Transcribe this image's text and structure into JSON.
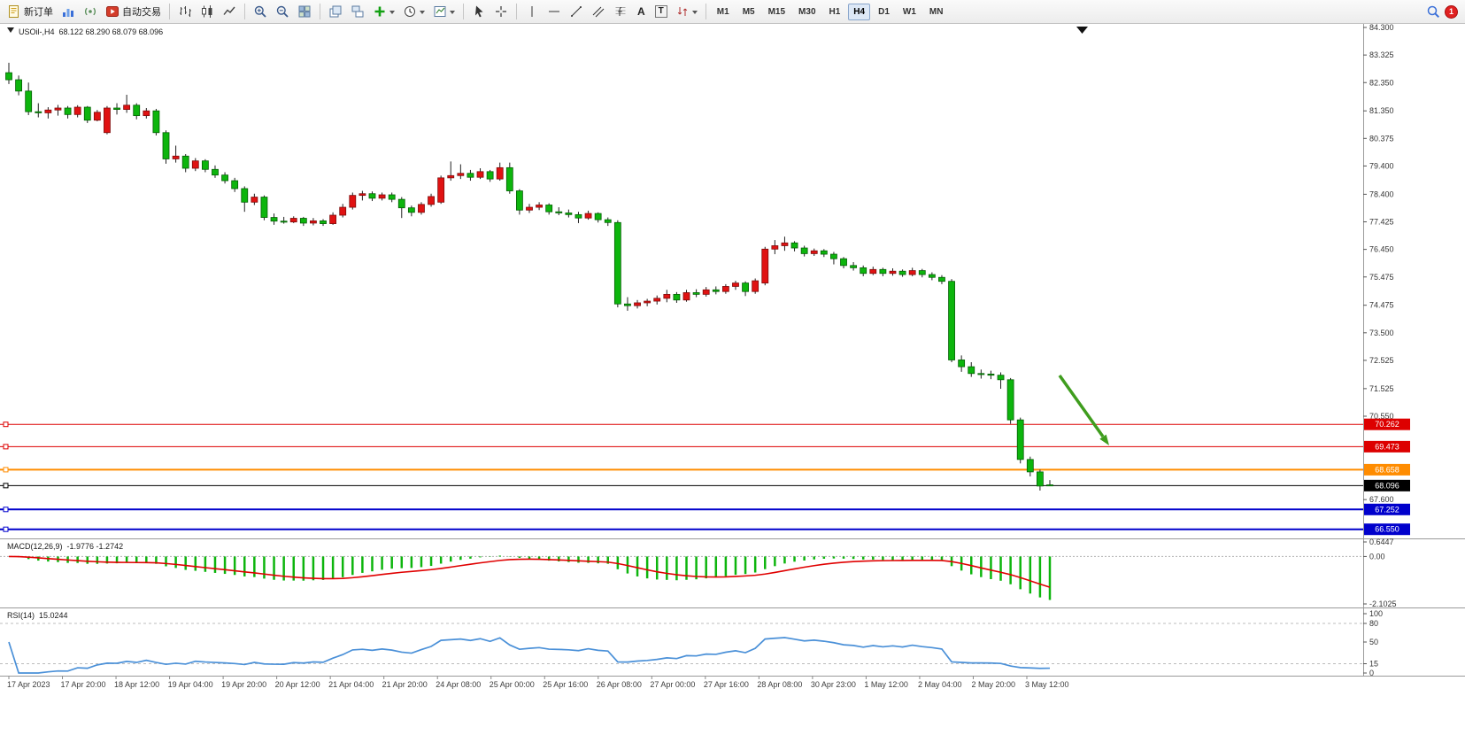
{
  "toolbar": {
    "new_order_label": "新订单",
    "autotrading_label": "自动交易",
    "text_tool": "A",
    "text_box_tool": "T",
    "timeframes": [
      "M1",
      "M5",
      "M15",
      "M30",
      "H1",
      "H4",
      "D1",
      "W1",
      "MN"
    ],
    "active_timeframe": "H4",
    "notification_count": "1"
  },
  "chart": {
    "symbol_period": "USOil-,H4",
    "ohlc_text": "68.122 68.290 68.079 68.096",
    "macd_name": "MACD(12,26,9)",
    "macd_values": "-1.9776 -1.2742",
    "rsi_name": "RSI(14)",
    "rsi_value": "15.0244"
  },
  "chart_data": {
    "type": "candlestick",
    "symbol": "USOil-",
    "timeframe": "H4",
    "last_candle": {
      "open": 68.122,
      "high": 68.29,
      "low": 68.079,
      "close": 68.096
    },
    "colors": {
      "bull": "#e01212",
      "bear": "#0db50d",
      "wick": "#222222",
      "macd_hist": "#0db50d",
      "macd_signal": "#e00000",
      "rsi_line": "#4a90d8",
      "axis_text": "#333333",
      "arrow": "#3f9d1e"
    },
    "price_axis_ticks": [
      "84.300",
      "83.325",
      "82.350",
      "81.350",
      "80.375",
      "79.400",
      "78.400",
      "77.425",
      "76.450",
      "75.475",
      "74.475",
      "73.500",
      "72.525",
      "71.525",
      "70.550",
      "67.600"
    ],
    "hlines": [
      {
        "value": 70.262,
        "label": "70.262",
        "color": "#dd0000",
        "width": 1
      },
      {
        "value": 69.473,
        "label": "69.473",
        "color": "#dd0000",
        "width": 1
      },
      {
        "value": 68.658,
        "label": "68.658",
        "color": "#ff8c00",
        "width": 2
      },
      {
        "value": 68.096,
        "label": "68.096",
        "color": "#000000",
        "width": 1
      },
      {
        "value": 67.252,
        "label": "67.252",
        "color": "#0000cc",
        "width": 2
      },
      {
        "value": 66.55,
        "label": "66.550",
        "color": "#0000cc",
        "width": 2
      }
    ],
    "macd": {
      "params": "12,26,9",
      "current": "-1.9776",
      "signal": "-1.2742",
      "axis_labels": [
        "0.6447",
        "0.00",
        "-2.1025"
      ],
      "axis_values": [
        0.6447,
        0,
        -2.1025
      ]
    },
    "rsi": {
      "period": 14,
      "current": "15.0244",
      "axis_labels": [
        "100",
        "80",
        "50",
        "15",
        "0"
      ],
      "axis_values": [
        100,
        80,
        50,
        15,
        0
      ],
      "level_lines": [
        80,
        15
      ]
    },
    "time_labels": [
      "17 Apr 2023",
      "17 Apr 20:00",
      "18 Apr 12:00",
      "19 Apr 04:00",
      "19 Apr 20:00",
      "20 Apr 12:00",
      "21 Apr 04:00",
      "21 Apr 20:00",
      "24 Apr 08:00",
      "25 Apr 00:00",
      "25 Apr 16:00",
      "26 Apr 08:00",
      "27 Apr 00:00",
      "27 Apr 16:00",
      "28 Apr 08:00",
      "30 Apr 23:00",
      "1 May 12:00",
      "2 May 04:00",
      "2 May 20:00",
      "3 May 12:00"
    ],
    "candles": [
      [
        82.7,
        83.05,
        82.3,
        82.45
      ],
      [
        82.45,
        82.6,
        81.9,
        82.05
      ],
      [
        82.05,
        82.35,
        81.2,
        81.32
      ],
      [
        81.32,
        81.62,
        81.12,
        81.28
      ],
      [
        81.28,
        81.48,
        81.08,
        81.38
      ],
      [
        81.38,
        81.56,
        81.18,
        81.45
      ],
      [
        81.45,
        81.52,
        81.08,
        81.22
      ],
      [
        81.22,
        81.55,
        81.12,
        81.48
      ],
      [
        81.48,
        81.52,
        80.92,
        81.02
      ],
      [
        81.02,
        81.38,
        80.98,
        81.3
      ],
      [
        80.58,
        81.52,
        80.52,
        81.45
      ],
      [
        81.45,
        81.62,
        81.22,
        81.4
      ],
      [
        81.4,
        81.92,
        81.28,
        81.55
      ],
      [
        81.55,
        81.62,
        81.05,
        81.18
      ],
      [
        81.18,
        81.45,
        81.08,
        81.35
      ],
      [
        81.35,
        81.42,
        80.48,
        80.58
      ],
      [
        80.58,
        80.66,
        79.48,
        79.65
      ],
      [
        79.65,
        80.12,
        79.52,
        79.75
      ],
      [
        79.75,
        79.82,
        79.18,
        79.32
      ],
      [
        79.32,
        79.68,
        79.22,
        79.58
      ],
      [
        79.58,
        79.64,
        79.18,
        79.28
      ],
      [
        79.28,
        79.42,
        78.98,
        79.08
      ],
      [
        79.08,
        79.18,
        78.78,
        78.88
      ],
      [
        78.88,
        78.98,
        78.48,
        78.6
      ],
      [
        78.6,
        78.68,
        77.78,
        78.12
      ],
      [
        78.12,
        78.42,
        78.02,
        78.3
      ],
      [
        78.3,
        78.36,
        77.48,
        77.58
      ],
      [
        77.58,
        77.72,
        77.32,
        77.45
      ],
      [
        77.45,
        77.6,
        77.36,
        77.42
      ],
      [
        77.42,
        77.62,
        77.38,
        77.55
      ],
      [
        77.55,
        77.6,
        77.28,
        77.38
      ],
      [
        77.38,
        77.56,
        77.3,
        77.46
      ],
      [
        77.46,
        77.52,
        77.28,
        77.36
      ],
      [
        77.36,
        77.76,
        77.32,
        77.66
      ],
      [
        77.66,
        78.06,
        77.58,
        77.94
      ],
      [
        77.94,
        78.46,
        77.86,
        78.36
      ],
      [
        78.36,
        78.52,
        78.18,
        78.42
      ],
      [
        78.42,
        78.5,
        78.16,
        78.26
      ],
      [
        78.26,
        78.46,
        78.18,
        78.38
      ],
      [
        78.38,
        78.46,
        78.12,
        78.22
      ],
      [
        78.22,
        78.3,
        77.56,
        77.92
      ],
      [
        77.92,
        78.0,
        77.62,
        77.76
      ],
      [
        77.76,
        78.12,
        77.68,
        78.04
      ],
      [
        78.04,
        78.42,
        77.96,
        78.32
      ],
      [
        78.12,
        79.06,
        78.06,
        78.98
      ],
      [
        78.98,
        79.56,
        78.88,
        79.06
      ],
      [
        79.06,
        79.46,
        78.94,
        79.14
      ],
      [
        79.14,
        79.26,
        78.88,
        79.0
      ],
      [
        79.0,
        79.32,
        78.94,
        79.2
      ],
      [
        79.2,
        79.26,
        78.84,
        78.94
      ],
      [
        78.94,
        79.52,
        78.88,
        79.34
      ],
      [
        79.34,
        79.52,
        78.42,
        78.52
      ],
      [
        78.52,
        78.58,
        77.68,
        77.84
      ],
      [
        77.84,
        78.06,
        77.74,
        77.94
      ],
      [
        77.94,
        78.12,
        77.84,
        78.02
      ],
      [
        78.02,
        78.08,
        77.68,
        77.78
      ],
      [
        77.78,
        77.94,
        77.66,
        77.74
      ],
      [
        77.74,
        77.86,
        77.58,
        77.68
      ],
      [
        77.68,
        77.78,
        77.38,
        77.56
      ],
      [
        77.56,
        77.82,
        77.5,
        77.72
      ],
      [
        77.72,
        77.76,
        77.4,
        77.5
      ],
      [
        77.5,
        77.58,
        77.28,
        77.4
      ],
      [
        77.4,
        77.48,
        74.4,
        74.52
      ],
      [
        74.52,
        74.76,
        74.28,
        74.46
      ],
      [
        74.46,
        74.66,
        74.36,
        74.56
      ],
      [
        74.56,
        74.7,
        74.44,
        74.62
      ],
      [
        74.62,
        74.82,
        74.5,
        74.72
      ],
      [
        74.72,
        75.02,
        74.58,
        74.86
      ],
      [
        74.86,
        74.94,
        74.56,
        74.66
      ],
      [
        74.66,
        75.02,
        74.6,
        74.92
      ],
      [
        74.92,
        75.04,
        74.76,
        74.86
      ],
      [
        74.86,
        75.12,
        74.78,
        75.02
      ],
      [
        75.02,
        75.14,
        74.86,
        74.96
      ],
      [
        74.96,
        75.22,
        74.88,
        75.14
      ],
      [
        75.14,
        75.34,
        75.02,
        75.26
      ],
      [
        75.26,
        75.32,
        74.8,
        74.96
      ],
      [
        74.96,
        75.42,
        74.88,
        75.34
      ],
      [
        75.26,
        76.54,
        75.18,
        76.46
      ],
      [
        76.46,
        76.78,
        76.28,
        76.58
      ],
      [
        76.58,
        76.9,
        76.4,
        76.68
      ],
      [
        76.68,
        76.74,
        76.38,
        76.5
      ],
      [
        76.5,
        76.58,
        76.2,
        76.3
      ],
      [
        76.3,
        76.48,
        76.22,
        76.4
      ],
      [
        76.4,
        76.46,
        76.18,
        76.28
      ],
      [
        76.28,
        76.36,
        75.92,
        76.12
      ],
      [
        76.12,
        76.18,
        75.78,
        75.88
      ],
      [
        75.88,
        76.0,
        75.7,
        75.8
      ],
      [
        75.8,
        75.88,
        75.5,
        75.6
      ],
      [
        75.6,
        75.84,
        75.54,
        75.74
      ],
      [
        75.74,
        75.8,
        75.5,
        75.6
      ],
      [
        75.6,
        75.78,
        75.52,
        75.68
      ],
      [
        75.68,
        75.74,
        75.48,
        75.56
      ],
      [
        75.56,
        75.8,
        75.5,
        75.7
      ],
      [
        75.7,
        75.76,
        75.46,
        75.56
      ],
      [
        75.56,
        75.64,
        75.36,
        75.46
      ],
      [
        75.46,
        75.54,
        75.22,
        75.32
      ],
      [
        75.32,
        75.4,
        72.46,
        72.54
      ],
      [
        72.54,
        72.7,
        72.12,
        72.3
      ],
      [
        72.3,
        72.46,
        71.94,
        72.06
      ],
      [
        72.06,
        72.2,
        71.88,
        72.04
      ],
      [
        72.04,
        72.16,
        71.86,
        72.0
      ],
      [
        72.0,
        72.1,
        71.52,
        71.84
      ],
      [
        71.84,
        71.9,
        70.28,
        70.42
      ],
      [
        70.42,
        70.5,
        68.88,
        69.02
      ],
      [
        69.02,
        69.12,
        68.42,
        68.58
      ],
      [
        68.58,
        68.66,
        67.92,
        68.08
      ],
      [
        68.122,
        68.29,
        68.079,
        68.096
      ]
    ]
  }
}
